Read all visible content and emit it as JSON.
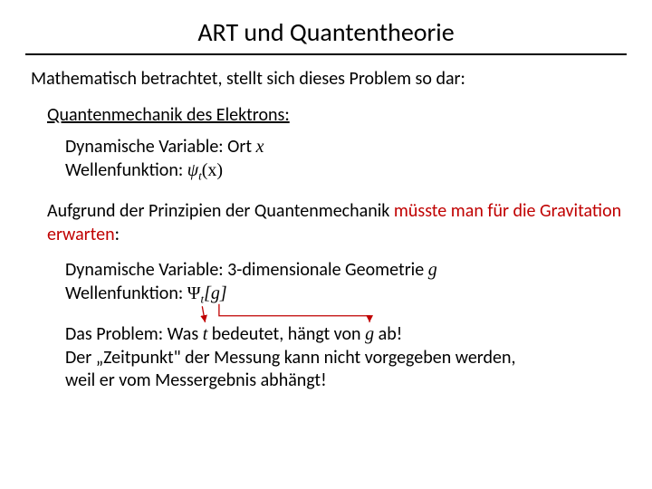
{
  "title": "ART und Quantentheorie",
  "intro": "Mathematisch betrachtet, stellt sich dieses Problem so dar:",
  "qm": {
    "heading": "Quantenmechanik des Elektrons:",
    "dynvar_label": "Dynamische Variable: Ort ",
    "wavefn_label": "Wellenfunktion:  "
  },
  "grav": {
    "line1": "Aufgrund der Prinzipien der Quantenmechanik ",
    "line1_emph": "müsste man für die Gravitation erwarten",
    "line1_tail": ":",
    "dynvar_label": "Dynamische Variable: 3-dimensionale Geometrie ",
    "wavefn_label": "Wellenfunktion:  "
  },
  "problem": {
    "l1a": "Das Problem: Was ",
    "l1b": " bedeutet, hängt von ",
    "l1c": " ab!",
    "l2": "Der „Zeitpunkt\" der Messung kann nicht vorgegeben werden,",
    "l3": "weil er vom Messergebnis abhängt!"
  },
  "math": {
    "x": "x",
    "psi": "ψ",
    "t": "t",
    "paren_x": "(x)",
    "g": "g",
    "bigPsi": "Ψ",
    "bracket_g": "[g]"
  },
  "arrows": {
    "color": "#c00000",
    "stroke_width": 1.3
  }
}
